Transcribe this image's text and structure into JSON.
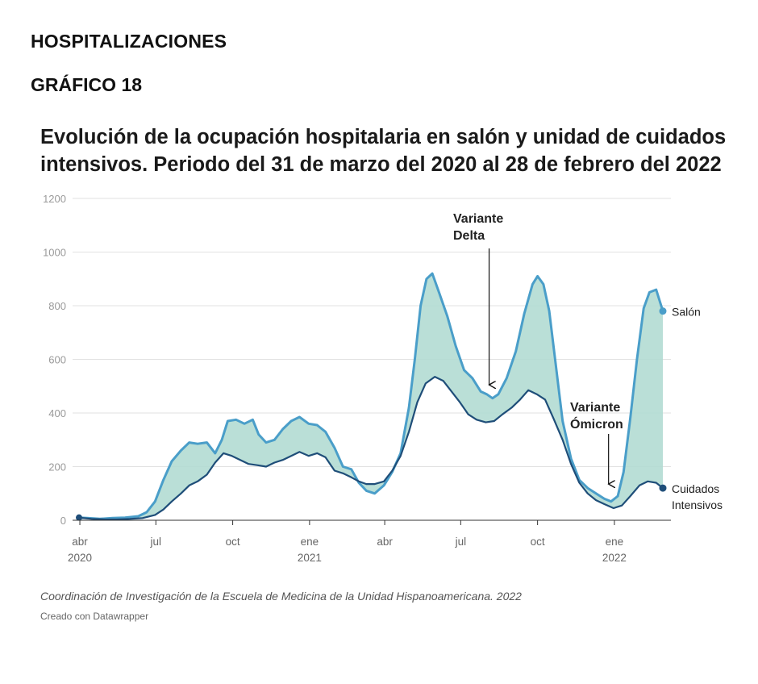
{
  "header": {
    "section_title": "HOSPITALIZACIONES",
    "figure_number": "GRÁFICO 18"
  },
  "footer": {
    "source": "Coordinación de Investigación de la Escuela de Medicina de la Unidad Hispanoamericana. 2022",
    "credit": "Creado con Datawrapper"
  },
  "chart_data": {
    "type": "area",
    "title": "Evolución de la ocupación hospitalaria en salón y unidad de cuidados intensivos. Periodo del 31 de marzo del 2020 al 28 de febrero del 2022",
    "xlabel": "",
    "ylabel": "",
    "ylim": [
      0,
      1200
    ],
    "yticks": [
      0,
      200,
      400,
      600,
      800,
      1000,
      1200
    ],
    "grid": true,
    "x_range": [
      "2020-03-31",
      "2022-02-28"
    ],
    "xticks": [
      {
        "date": "2020-04-01",
        "label": "abr",
        "year": "2020"
      },
      {
        "date": "2020-07-01",
        "label": "jul",
        "year": ""
      },
      {
        "date": "2020-10-01",
        "label": "oct",
        "year": ""
      },
      {
        "date": "2021-01-01",
        "label": "ene",
        "year": "2021"
      },
      {
        "date": "2021-04-01",
        "label": "abr",
        "year": ""
      },
      {
        "date": "2021-07-01",
        "label": "jul",
        "year": ""
      },
      {
        "date": "2021-10-01",
        "label": "oct",
        "year": ""
      },
      {
        "date": "2022-01-01",
        "label": "ene",
        "year": "2022"
      }
    ],
    "fill_between_color": "#b3dbd3",
    "series": [
      {
        "name": "Salón",
        "color": "#4a9ec9",
        "points": [
          [
            "2020-03-31",
            10
          ],
          [
            "2020-04-10",
            8
          ],
          [
            "2020-04-25",
            5
          ],
          [
            "2020-05-10",
            8
          ],
          [
            "2020-05-25",
            10
          ],
          [
            "2020-06-10",
            15
          ],
          [
            "2020-06-20",
            30
          ],
          [
            "2020-06-30",
            70
          ],
          [
            "2020-07-10",
            150
          ],
          [
            "2020-07-20",
            220
          ],
          [
            "2020-07-31",
            260
          ],
          [
            "2020-08-10",
            290
          ],
          [
            "2020-08-20",
            285
          ],
          [
            "2020-08-31",
            290
          ],
          [
            "2020-09-10",
            250
          ],
          [
            "2020-09-18",
            300
          ],
          [
            "2020-09-25",
            370
          ],
          [
            "2020-10-05",
            375
          ],
          [
            "2020-10-15",
            360
          ],
          [
            "2020-10-25",
            375
          ],
          [
            "2020-11-01",
            320
          ],
          [
            "2020-11-10",
            290
          ],
          [
            "2020-11-20",
            300
          ],
          [
            "2020-11-30",
            340
          ],
          [
            "2020-12-10",
            370
          ],
          [
            "2020-12-20",
            385
          ],
          [
            "2020-12-31",
            360
          ],
          [
            "2021-01-10",
            355
          ],
          [
            "2021-01-20",
            330
          ],
          [
            "2021-01-31",
            270
          ],
          [
            "2021-02-10",
            200
          ],
          [
            "2021-02-20",
            190
          ],
          [
            "2021-03-01",
            140
          ],
          [
            "2021-03-10",
            110
          ],
          [
            "2021-03-20",
            100
          ],
          [
            "2021-03-31",
            130
          ],
          [
            "2021-04-10",
            180
          ],
          [
            "2021-04-20",
            250
          ],
          [
            "2021-04-30",
            420
          ],
          [
            "2021-05-07",
            600
          ],
          [
            "2021-05-14",
            800
          ],
          [
            "2021-05-21",
            900
          ],
          [
            "2021-05-28",
            920
          ],
          [
            "2021-06-05",
            850
          ],
          [
            "2021-06-15",
            760
          ],
          [
            "2021-06-25",
            650
          ],
          [
            "2021-07-05",
            560
          ],
          [
            "2021-07-15",
            530
          ],
          [
            "2021-07-25",
            480
          ],
          [
            "2021-08-01",
            470
          ],
          [
            "2021-08-08",
            455
          ],
          [
            "2021-08-15",
            470
          ],
          [
            "2021-08-25",
            530
          ],
          [
            "2021-09-05",
            630
          ],
          [
            "2021-09-15",
            770
          ],
          [
            "2021-09-25",
            880
          ],
          [
            "2021-10-01",
            910
          ],
          [
            "2021-10-08",
            880
          ],
          [
            "2021-10-15",
            780
          ],
          [
            "2021-10-22",
            600
          ],
          [
            "2021-10-31",
            370
          ],
          [
            "2021-11-10",
            230
          ],
          [
            "2021-11-20",
            150
          ],
          [
            "2021-11-30",
            120
          ],
          [
            "2021-12-10",
            100
          ],
          [
            "2021-12-20",
            80
          ],
          [
            "2021-12-28",
            70
          ],
          [
            "2022-01-05",
            90
          ],
          [
            "2022-01-12",
            180
          ],
          [
            "2022-01-20",
            380
          ],
          [
            "2022-01-28",
            600
          ],
          [
            "2022-02-05",
            790
          ],
          [
            "2022-02-12",
            850
          ],
          [
            "2022-02-20",
            860
          ],
          [
            "2022-02-28",
            780
          ]
        ]
      },
      {
        "name": "Cuidados Intensivos",
        "color": "#1f4e79",
        "points": [
          [
            "2020-03-31",
            10
          ],
          [
            "2020-04-15",
            5
          ],
          [
            "2020-05-01",
            3
          ],
          [
            "2020-05-15",
            3
          ],
          [
            "2020-05-31",
            5
          ],
          [
            "2020-06-15",
            8
          ],
          [
            "2020-06-30",
            20
          ],
          [
            "2020-07-10",
            40
          ],
          [
            "2020-07-20",
            70
          ],
          [
            "2020-07-31",
            100
          ],
          [
            "2020-08-10",
            130
          ],
          [
            "2020-08-20",
            145
          ],
          [
            "2020-08-31",
            170
          ],
          [
            "2020-09-10",
            215
          ],
          [
            "2020-09-20",
            250
          ],
          [
            "2020-09-30",
            240
          ],
          [
            "2020-10-10",
            225
          ],
          [
            "2020-10-20",
            210
          ],
          [
            "2020-10-31",
            205
          ],
          [
            "2020-11-10",
            200
          ],
          [
            "2020-11-20",
            215
          ],
          [
            "2020-11-30",
            225
          ],
          [
            "2020-12-10",
            240
          ],
          [
            "2020-12-20",
            255
          ],
          [
            "2020-12-31",
            240
          ],
          [
            "2021-01-10",
            250
          ],
          [
            "2021-01-20",
            235
          ],
          [
            "2021-01-31",
            185
          ],
          [
            "2021-02-10",
            175
          ],
          [
            "2021-02-20",
            160
          ],
          [
            "2021-03-01",
            145
          ],
          [
            "2021-03-10",
            135
          ],
          [
            "2021-03-20",
            135
          ],
          [
            "2021-03-31",
            145
          ],
          [
            "2021-04-10",
            185
          ],
          [
            "2021-04-20",
            240
          ],
          [
            "2021-04-30",
            330
          ],
          [
            "2021-05-10",
            440
          ],
          [
            "2021-05-20",
            510
          ],
          [
            "2021-05-31",
            535
          ],
          [
            "2021-06-10",
            520
          ],
          [
            "2021-06-20",
            480
          ],
          [
            "2021-06-30",
            440
          ],
          [
            "2021-07-10",
            395
          ],
          [
            "2021-07-20",
            375
          ],
          [
            "2021-07-31",
            365
          ],
          [
            "2021-08-10",
            370
          ],
          [
            "2021-08-20",
            395
          ],
          [
            "2021-08-31",
            420
          ],
          [
            "2021-09-10",
            450
          ],
          [
            "2021-09-20",
            485
          ],
          [
            "2021-09-30",
            470
          ],
          [
            "2021-10-10",
            450
          ],
          [
            "2021-10-20",
            380
          ],
          [
            "2021-10-31",
            300
          ],
          [
            "2021-11-10",
            210
          ],
          [
            "2021-11-20",
            140
          ],
          [
            "2021-11-30",
            100
          ],
          [
            "2021-12-10",
            75
          ],
          [
            "2021-12-20",
            60
          ],
          [
            "2021-12-31",
            45
          ],
          [
            "2022-01-10",
            55
          ],
          [
            "2022-01-20",
            90
          ],
          [
            "2022-01-31",
            130
          ],
          [
            "2022-02-10",
            145
          ],
          [
            "2022-02-20",
            140
          ],
          [
            "2022-02-28",
            120
          ]
        ]
      }
    ],
    "annotations": [
      {
        "text": [
          "Variante",
          "Delta"
        ],
        "date": "2021-08-04",
        "value": 490
      },
      {
        "text": [
          "Variante",
          "Ómicron"
        ],
        "date": "2021-12-25",
        "value": 120
      }
    ]
  }
}
